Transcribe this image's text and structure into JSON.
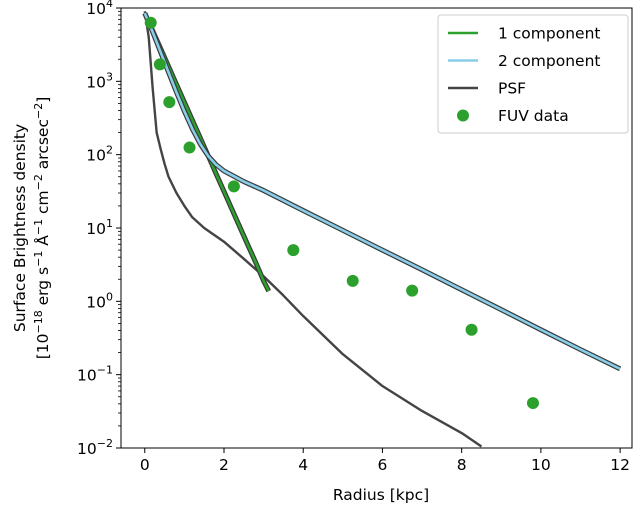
{
  "chart_data": {
    "type": "line",
    "xlabel": "Radius [kpc]",
    "ylabel_line1": "Surface Brightness density",
    "ylabel_line2": {
      "prefix": "[10",
      "exp_unit": "−18",
      "erg": " erg s",
      "exp_s": "−1",
      "ang": " Å",
      "exp_ang": "−1",
      "cm": " cm",
      "exp_cm": "−2",
      "arcsec": " arcsec",
      "exp_arcsec": "−2",
      "suffix": "]"
    },
    "xlim": [
      -0.6,
      12.3
    ],
    "ylim": [
      0.01,
      10000
    ],
    "yscale": "log",
    "x_ticks": [
      {
        "value": 0,
        "label": "0"
      },
      {
        "value": 2,
        "label": "2"
      },
      {
        "value": 4,
        "label": "4"
      },
      {
        "value": 6,
        "label": "6"
      },
      {
        "value": 8,
        "label": "8"
      },
      {
        "value": 10,
        "label": "10"
      },
      {
        "value": 12,
        "label": "12"
      }
    ],
    "y_ticks": [
      {
        "value": 0.01,
        "base": "10",
        "exp": "−2"
      },
      {
        "value": 0.1,
        "base": "10",
        "exp": "−1"
      },
      {
        "value": 1,
        "base": "10",
        "exp": "0"
      },
      {
        "value": 10,
        "base": "10",
        "exp": "1"
      },
      {
        "value": 100,
        "base": "10",
        "exp": "2"
      },
      {
        "value": 1000,
        "base": "10",
        "exp": "3"
      },
      {
        "value": 10000,
        "base": "10",
        "exp": "4"
      }
    ],
    "legend_position": "top-right",
    "series": [
      {
        "name": "1 component",
        "kind": "line",
        "color": "#2ca02c",
        "outline": "#3a3a3a",
        "x": [
          0,
          0.2,
          0.4,
          0.6,
          0.8,
          1.0,
          1.2,
          1.4,
          1.6,
          1.8,
          2.0,
          2.2,
          2.4,
          2.6,
          2.8,
          3.0,
          3.13
        ],
        "y": [
          8500,
          4900,
          2800,
          1600,
          910,
          520,
          297,
          170,
          97,
          55,
          31.6,
          18,
          10.3,
          5.9,
          3.4,
          1.9,
          1.38
        ]
      },
      {
        "name": "2 component",
        "kind": "line",
        "color": "#87ceeb",
        "outline": "#3a3a3a",
        "x": [
          0,
          0.2,
          0.4,
          0.6,
          0.8,
          1.0,
          1.2,
          1.4,
          1.6,
          1.8,
          2.0,
          2.5,
          3.0,
          4.0,
          5.0,
          6.0,
          7.0,
          8.0,
          9.0,
          10.0,
          11.0,
          12.0
        ],
        "y": [
          8500,
          4700,
          2500,
          1330,
          710,
          390,
          225,
          140,
          96,
          73,
          60,
          43,
          32.5,
          17.3,
          9.3,
          5.0,
          2.7,
          1.44,
          0.77,
          0.41,
          0.22,
          0.12
        ]
      },
      {
        "name": "PSF",
        "kind": "line",
        "color": "#444444",
        "x": [
          0,
          0.1,
          0.2,
          0.3,
          0.4,
          0.5,
          0.6,
          0.8,
          1.0,
          1.2,
          1.5,
          2.0,
          2.5,
          3.0,
          3.5,
          4.0,
          5.0,
          6.0,
          7.0,
          8.0,
          8.5
        ],
        "y": [
          9000,
          4000,
          800,
          200,
          120,
          75,
          50,
          30,
          20,
          14,
          10,
          6.5,
          3.8,
          2.2,
          1.2,
          0.63,
          0.19,
          0.07,
          0.032,
          0.016,
          0.0105
        ]
      },
      {
        "name": "FUV data",
        "kind": "scatter",
        "color": "#2ca02c",
        "x": [
          0.15,
          0.38,
          0.62,
          1.13,
          2.25,
          3.75,
          5.25,
          6.75,
          8.25,
          9.8
        ],
        "y": [
          6300,
          1700,
          520,
          125,
          37,
          5.0,
          1.9,
          1.4,
          0.41,
          0.041
        ]
      }
    ]
  }
}
